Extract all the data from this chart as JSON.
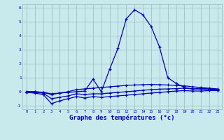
{
  "x": [
    0,
    1,
    2,
    3,
    4,
    5,
    6,
    7,
    8,
    9,
    10,
    11,
    12,
    13,
    14,
    15,
    16,
    17,
    18,
    19,
    20,
    21,
    22,
    23
  ],
  "line1": [
    0.0,
    0.0,
    -0.05,
    -0.15,
    -0.1,
    -0.05,
    0.0,
    0.05,
    0.9,
    0.0,
    1.6,
    3.1,
    5.2,
    5.85,
    5.5,
    4.65,
    3.2,
    1.0,
    0.6,
    0.3,
    0.2,
    0.25,
    0.2,
    0.15
  ],
  "line2": [
    0.0,
    0.0,
    -0.05,
    -0.2,
    -0.1,
    0.0,
    0.15,
    0.2,
    0.25,
    0.3,
    0.35,
    0.4,
    0.45,
    0.48,
    0.5,
    0.52,
    0.5,
    0.48,
    0.45,
    0.42,
    0.35,
    0.3,
    0.25,
    0.2
  ],
  "line3": [
    -0.05,
    -0.05,
    -0.1,
    -0.5,
    -0.4,
    -0.3,
    -0.15,
    -0.2,
    -0.15,
    -0.15,
    -0.1,
    -0.05,
    0.0,
    0.05,
    0.1,
    0.15,
    0.18,
    0.2,
    0.22,
    0.25,
    0.2,
    0.18,
    0.15,
    0.12
  ],
  "line4": [
    -0.05,
    -0.1,
    -0.2,
    -0.85,
    -0.65,
    -0.5,
    -0.35,
    -0.45,
    -0.35,
    -0.4,
    -0.35,
    -0.3,
    -0.25,
    -0.2,
    -0.15,
    -0.1,
    -0.05,
    0.0,
    0.05,
    0.08,
    0.05,
    0.05,
    0.08,
    0.08
  ],
  "line_color": "#0000bb",
  "bg_color": "#c8eaed",
  "grid_color": "#9ab8bc",
  "xlabel": "Graphe des températures (°c)",
  "ylim": [
    -1.25,
    6.25
  ],
  "xlim": [
    -0.5,
    23.5
  ],
  "yticks": [
    -1,
    0,
    1,
    2,
    3,
    4,
    5,
    6
  ],
  "xticks": [
    0,
    1,
    2,
    3,
    4,
    5,
    6,
    7,
    8,
    9,
    10,
    11,
    12,
    13,
    14,
    15,
    16,
    17,
    18,
    19,
    20,
    21,
    22,
    23
  ]
}
